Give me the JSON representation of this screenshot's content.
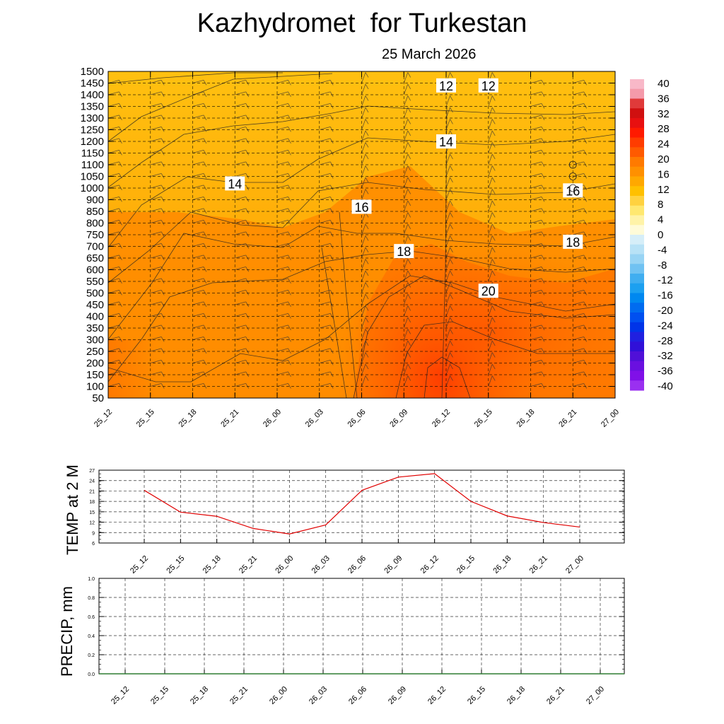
{
  "title": "Kazhydromet  for Turkestan",
  "date": "25 March 2026",
  "time_labels": [
    "25_12",
    "25_15",
    "25_18",
    "25_21",
    "26_00",
    "26_03",
    "26_06",
    "26_09",
    "26_12",
    "26_15",
    "26_18",
    "26_21",
    "27_00"
  ],
  "chart_data": [
    {
      "type": "heatmap",
      "title": "",
      "xlabel": "",
      "ylabel": "",
      "y_ticks": [
        50,
        100,
        150,
        200,
        250,
        300,
        350,
        400,
        450,
        500,
        550,
        600,
        650,
        700,
        750,
        800,
        850,
        900,
        1000,
        1050,
        1100,
        1150,
        1200,
        1250,
        1300,
        1350,
        1400,
        1450,
        1500
      ],
      "colorbar": {
        "labels": [
          40,
          36,
          32,
          28,
          24,
          20,
          16,
          12,
          8,
          4,
          0,
          -4,
          -8,
          -12,
          -16,
          -20,
          -24,
          -28,
          -32,
          -36,
          -40
        ],
        "range": [
          -40,
          40
        ]
      },
      "contour_labels": [
        {
          "text": "12",
          "x": "26_12",
          "y": 1440
        },
        {
          "text": "12",
          "x": "26_15",
          "y": 1440
        },
        {
          "text": "14",
          "x": "26_12",
          "y": 1200
        },
        {
          "text": "14",
          "x": "25_21",
          "y": 1020
        },
        {
          "text": "16",
          "x": "26_21",
          "y": 980
        },
        {
          "text": "16",
          "x": "26_06",
          "y": 870
        },
        {
          "text": "18",
          "x": "26_09",
          "y": 680
        },
        {
          "text": "18",
          "x": "26_21",
          "y": 720
        },
        {
          "text": "20",
          "x": "26_15",
          "y": 510
        }
      ],
      "grid": true
    },
    {
      "type": "line",
      "ylabel": "TEMP at 2 M",
      "ylim": [
        6,
        27
      ],
      "y_ticks": [
        27,
        24,
        21,
        18,
        15,
        12,
        9,
        6
      ],
      "x": [
        "25_12",
        "25_15",
        "25_18",
        "25_21",
        "26_00",
        "26_03",
        "26_06",
        "26_09",
        "26_12",
        "26_15",
        "26_18",
        "26_21",
        "27_00"
      ],
      "series": [
        {
          "values": [
            21.2,
            14.9,
            13.7,
            10.2,
            8.6,
            11.2,
            21.2,
            25.0,
            26.0,
            18.0,
            13.8,
            11.9,
            10.6
          ],
          "color": "#e00000"
        }
      ],
      "grid": true
    },
    {
      "type": "line",
      "ylabel": "PRECIP, mm",
      "ylim": [
        0,
        1.0
      ],
      "y_ticks": [
        "1.0",
        "0.8",
        "0.6",
        "0.4",
        "0.2",
        "0.0"
      ],
      "x": [
        "25_12",
        "25_15",
        "25_18",
        "25_21",
        "26_00",
        "26_03",
        "26_06",
        "26_09",
        "26_12",
        "26_15",
        "26_18",
        "26_21",
        "27_00"
      ],
      "series": [
        {
          "values": [
            0,
            0,
            0,
            0,
            0,
            0,
            0,
            0,
            0,
            0,
            0,
            0,
            0
          ],
          "color": "#2e7d32"
        }
      ],
      "grid": true
    }
  ]
}
